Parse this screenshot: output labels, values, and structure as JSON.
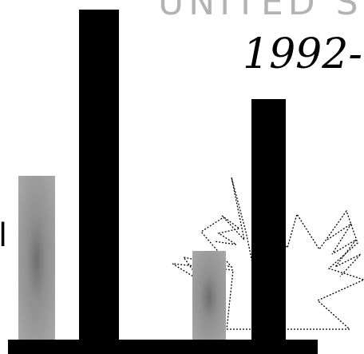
{
  "heading": {
    "line1": "UNITED S",
    "line2": "1992-"
  },
  "side_mark": "l",
  "colors": {
    "background": "#ffffff",
    "bar_dark": "#000000",
    "bar_light": "#a0a0a0",
    "heading_gray": "#b3b3b3"
  },
  "bars": [
    {
      "name": "bar-1-gray",
      "style": "gray"
    },
    {
      "name": "bar-1-black",
      "style": "black"
    },
    {
      "name": "bar-2-gray",
      "style": "gray"
    },
    {
      "name": "bar-2-black",
      "style": "black"
    }
  ]
}
